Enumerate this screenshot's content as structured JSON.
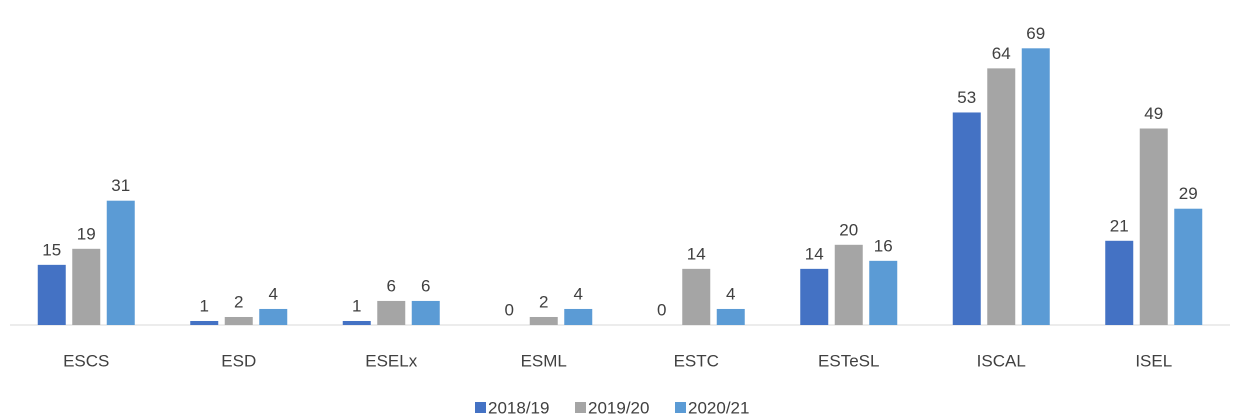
{
  "chart_data": {
    "type": "bar",
    "categories": [
      "ESCS",
      "ESD",
      "ESELx",
      "ESML",
      "ESTC",
      "ESTeSL",
      "ISCAL",
      "ISEL"
    ],
    "series": [
      {
        "name": "2018/19",
        "color": "#4472c4",
        "values": [
          15,
          1,
          1,
          0,
          0,
          14,
          53,
          21
        ]
      },
      {
        "name": "2019/20",
        "color": "#a5a5a5",
        "values": [
          19,
          2,
          6,
          2,
          14,
          20,
          64,
          49
        ]
      },
      {
        "name": "2020/21",
        "color": "#5b9bd5",
        "values": [
          31,
          4,
          6,
          4,
          4,
          16,
          69,
          29
        ]
      }
    ],
    "legend": "bottom"
  }
}
